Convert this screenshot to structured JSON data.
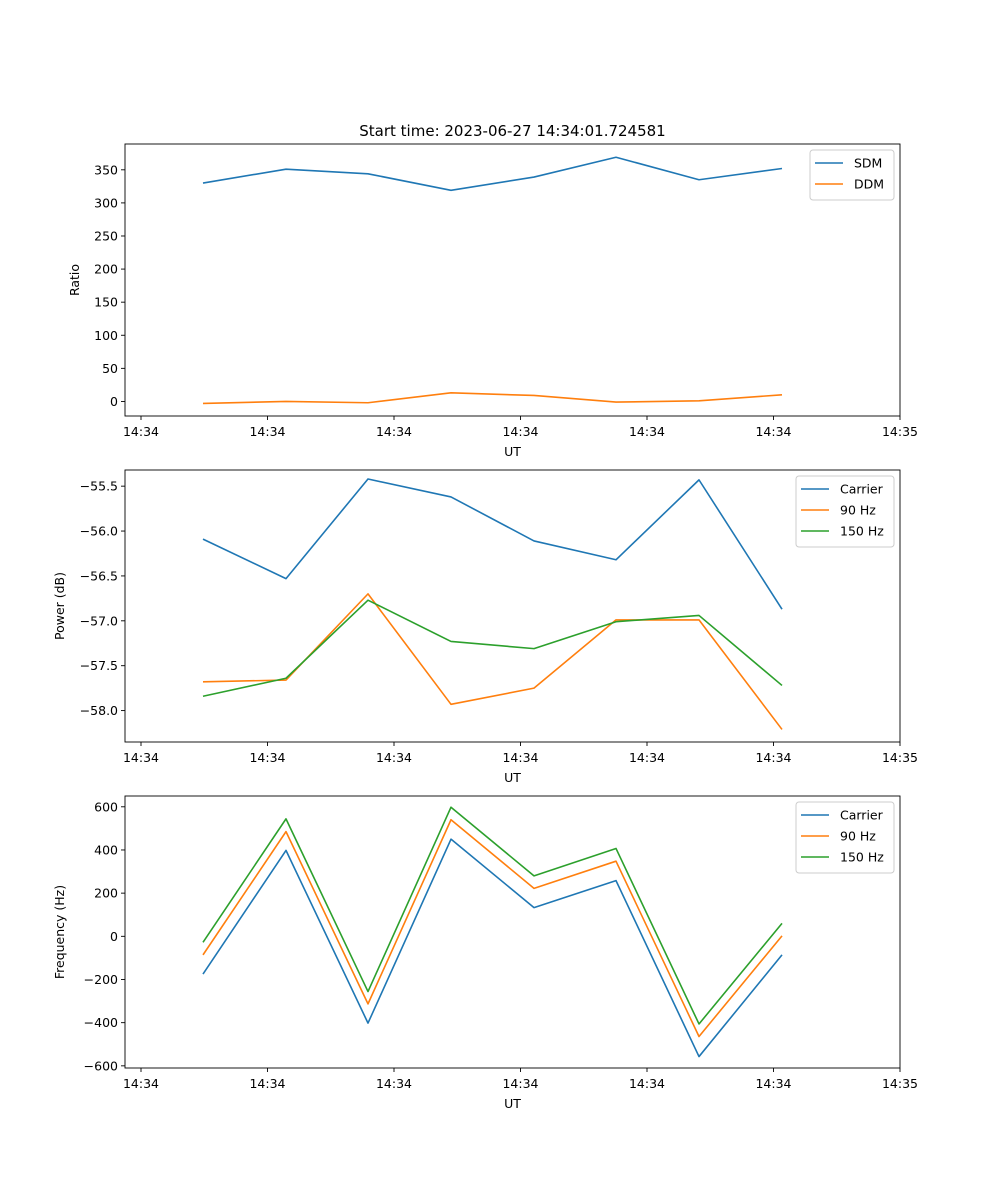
{
  "figure": {
    "title": "Start time: 2023-06-27 14:34:01.724581"
  },
  "chart_data": [
    {
      "type": "line",
      "xlabel": "UT",
      "ylabel": "Ratio",
      "x_tick_labels": [
        "14:34",
        "14:34",
        "14:34",
        "14:34",
        "14:34",
        "14:34",
        "14:35"
      ],
      "y_ticks": [
        0,
        50,
        100,
        150,
        200,
        250,
        300,
        350
      ],
      "ylim": [
        -22,
        389
      ],
      "grid": false,
      "legend": "upper right",
      "series": [
        {
          "name": "SDM",
          "color": "#1f77b4",
          "values": [
            330,
            351,
            344,
            319,
            339,
            369,
            335,
            352
          ]
        },
        {
          "name": "DDM",
          "color": "#ff7f0e",
          "values": [
            -3,
            0,
            -2,
            13,
            9,
            -1,
            1,
            10
          ]
        }
      ]
    },
    {
      "type": "line",
      "xlabel": "UT",
      "ylabel": "Power (dB)",
      "x_tick_labels": [
        "14:34",
        "14:34",
        "14:34",
        "14:34",
        "14:34",
        "14:34",
        "14:35"
      ],
      "y_ticks": [
        -58.0,
        -57.5,
        -57.0,
        -56.5,
        -56.0,
        -55.5
      ],
      "y_tick_labels": [
        "−58.0",
        "−57.5",
        "−57.0",
        "−56.5",
        "−56.0",
        "−55.5"
      ],
      "ylim": [
        -58.35,
        -55.32
      ],
      "grid": false,
      "legend": "upper right",
      "series": [
        {
          "name": "Carrier",
          "color": "#1f77b4",
          "values": [
            -56.09,
            -56.53,
            -55.42,
            -55.62,
            -56.11,
            -56.32,
            -55.43,
            -56.87
          ]
        },
        {
          "name": "90 Hz",
          "color": "#ff7f0e",
          "values": [
            -57.68,
            -57.66,
            -56.7,
            -57.93,
            -57.75,
            -56.99,
            -56.99,
            -58.21
          ]
        },
        {
          "name": "150 Hz",
          "color": "#2ca02c",
          "values": [
            -57.84,
            -57.64,
            -56.77,
            -57.23,
            -57.31,
            -57.01,
            -56.94,
            -57.72
          ]
        }
      ]
    },
    {
      "type": "line",
      "xlabel": "UT",
      "ylabel": "Frequency (Hz)",
      "x_tick_labels": [
        "14:34",
        "14:34",
        "14:34",
        "14:34",
        "14:34",
        "14:34",
        "14:35"
      ],
      "y_ticks": [
        -600,
        -400,
        -200,
        0,
        200,
        400,
        600
      ],
      "y_tick_labels": [
        "−600",
        "−400",
        "−200",
        "0",
        "200",
        "400",
        "600"
      ],
      "ylim": [
        -610,
        650
      ],
      "grid": false,
      "legend": "upper right",
      "series": [
        {
          "name": "Carrier",
          "color": "#1f77b4",
          "values": [
            -175,
            398,
            -402,
            450,
            133,
            258,
            -557,
            -86
          ]
        },
        {
          "name": "90 Hz",
          "color": "#ff7f0e",
          "values": [
            -86,
            485,
            -313,
            540,
            222,
            348,
            -464,
            2
          ]
        },
        {
          "name": "150 Hz",
          "color": "#2ca02c",
          "values": [
            -28,
            544,
            -256,
            598,
            280,
            407,
            -406,
            60
          ]
        }
      ]
    }
  ]
}
